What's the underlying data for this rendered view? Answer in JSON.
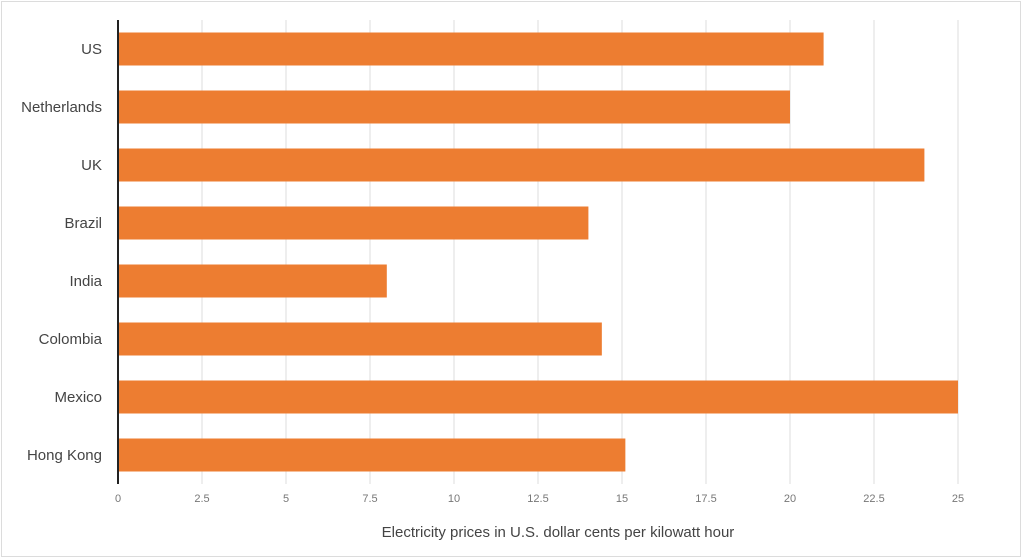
{
  "colors": {
    "bar": "#ED7D31",
    "grid": "#dddddd",
    "axis": "#222222"
  },
  "chart_data": {
    "type": "bar",
    "orientation": "horizontal",
    "title": "",
    "xlabel": "Electricity prices in U.S. dollar cents per kilowatt hour",
    "ylabel": "",
    "categories": [
      "US",
      "Netherlands",
      "UK",
      "Brazil",
      "India",
      "Colombia",
      "Mexico",
      "Hong Kong"
    ],
    "values": [
      21,
      20,
      24,
      14,
      8,
      14.4,
      25,
      15.1
    ],
    "xlim": [
      0,
      25
    ],
    "ticks": [
      0,
      2.5,
      5,
      7.5,
      10,
      12.5,
      15,
      17.5,
      20,
      22.5,
      25
    ],
    "tick_labels": [
      "0",
      "2.5",
      "5",
      "7.5",
      "10",
      "12.5",
      "15",
      "17.5",
      "20",
      "22.5",
      "25"
    ],
    "grid": true,
    "legend": "none"
  }
}
